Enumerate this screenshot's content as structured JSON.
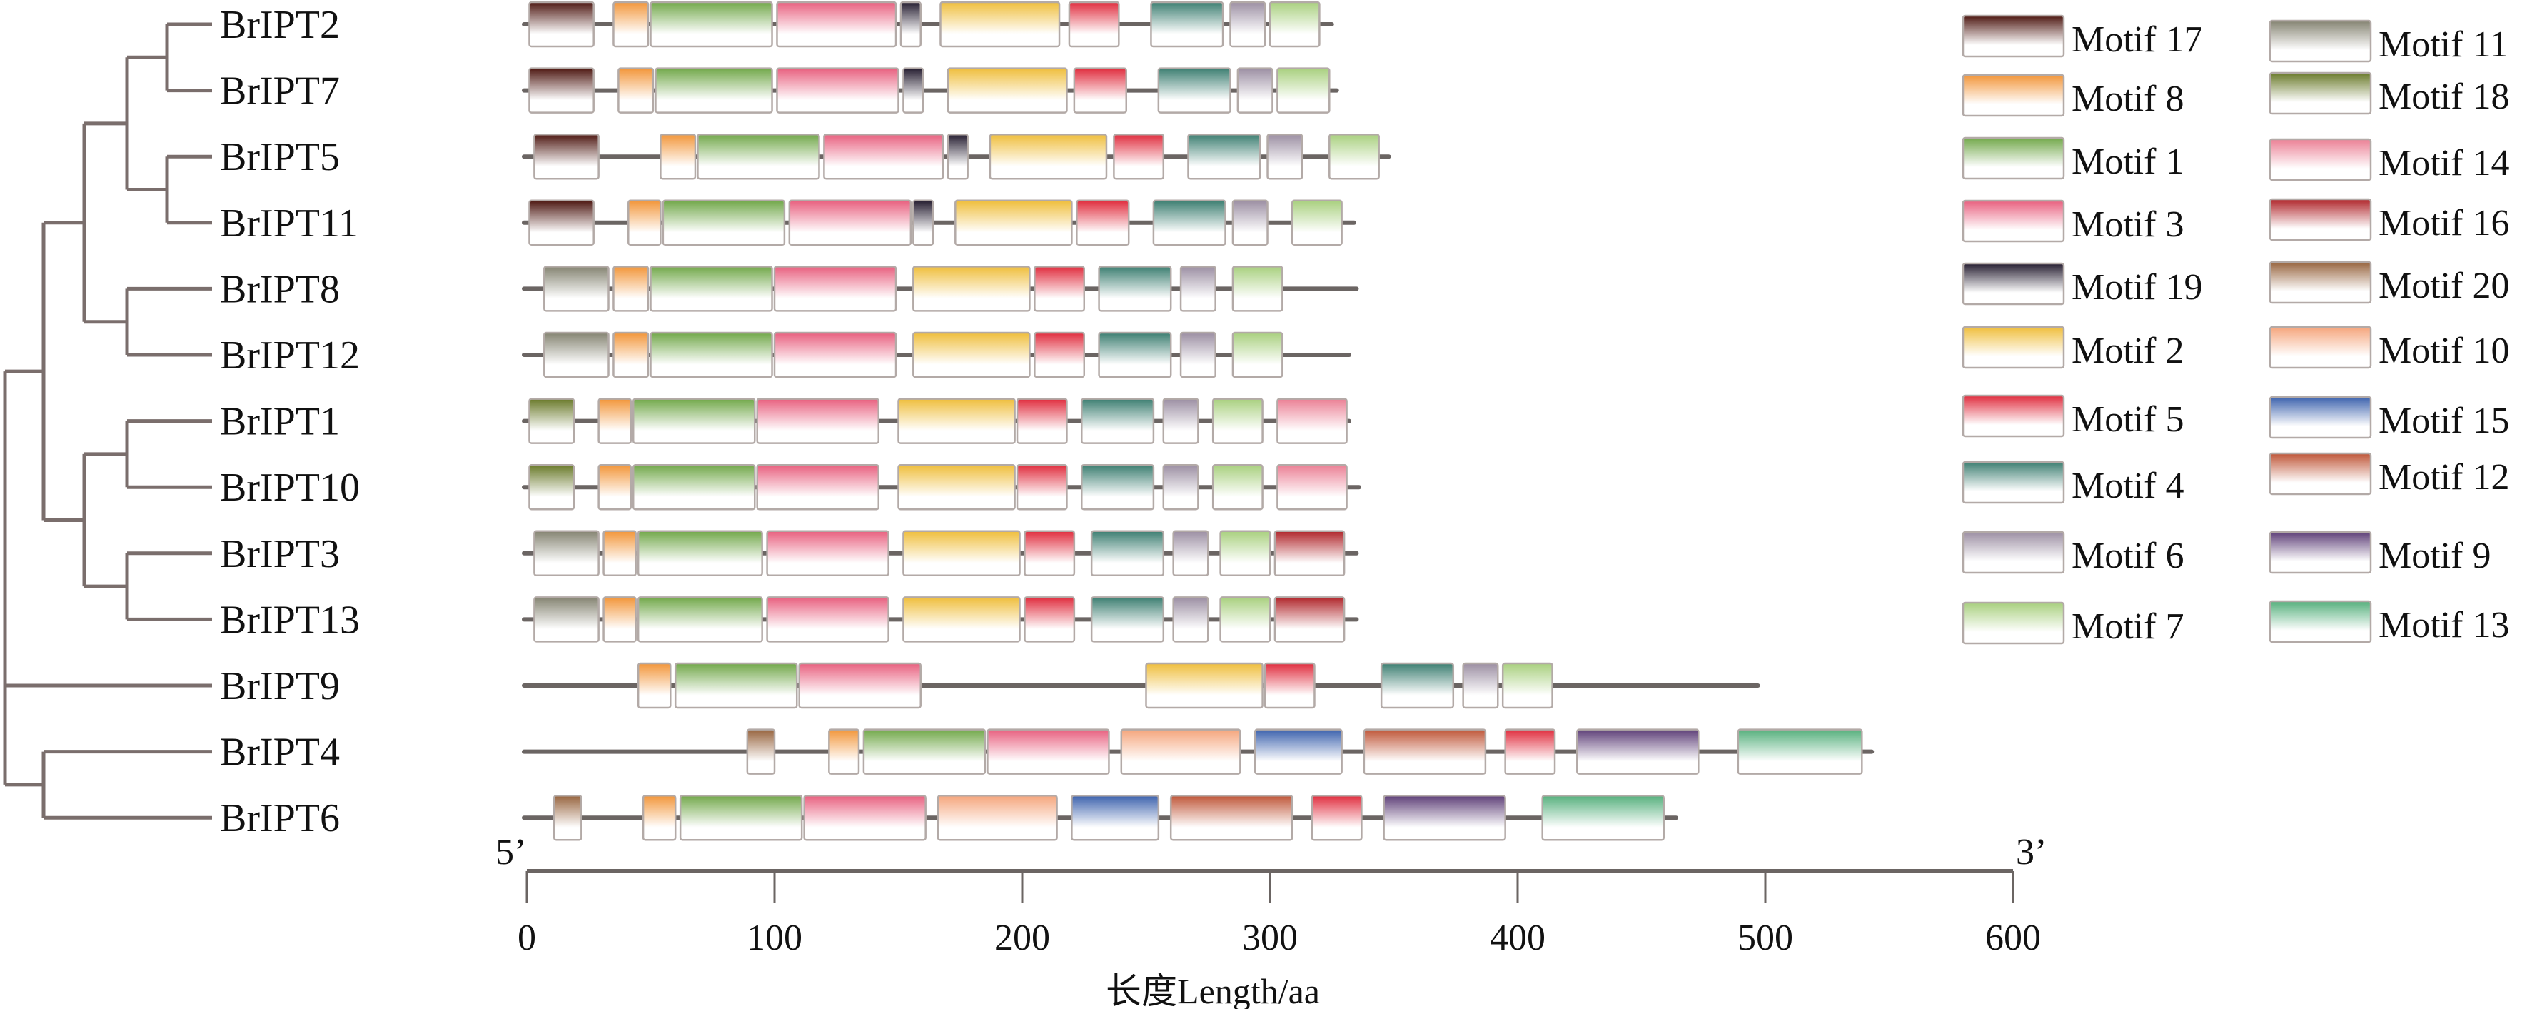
{
  "chart_data": {
    "type": "motif-diagram",
    "title": "",
    "xlabel": "长度Length/aa",
    "xlim": [
      0,
      600
    ],
    "x_ticks": [
      0,
      100,
      200,
      300,
      400,
      500,
      600
    ],
    "x_tick_labels": [
      "0",
      "100",
      "200",
      "300",
      "400",
      "500",
      "600"
    ],
    "axis_end_labels": {
      "start": "5’",
      "end": "3’"
    },
    "legend_placement": "top-right",
    "motif_colors": {
      "1": "#72a84a",
      "2": "#efbe3c",
      "3": "#e8607f",
      "4": "#3d7f72",
      "5": "#e02d3e",
      "6": "#9c8fa3",
      "7": "#a9d07f",
      "8": "#f2963a",
      "9": "#5e3f78",
      "10": "#f5a57c",
      "11": "#858472",
      "12": "#bf5638",
      "13": "#56b07d",
      "14": "#eb8095",
      "15": "#3c62ad",
      "16": "#b0262b",
      "17": "#4e1812",
      "18": "#6a7a2a",
      "19": "#251d30",
      "20": "#97643e"
    },
    "legend": [
      {
        "motif": "17",
        "label": "Motif 17"
      },
      {
        "motif": "8",
        "label": "Motif 8"
      },
      {
        "motif": "1",
        "label": "Motif 1"
      },
      {
        "motif": "3",
        "label": "Motif 3"
      },
      {
        "motif": "19",
        "label": "Motif 19"
      },
      {
        "motif": "2",
        "label": "Motif 2"
      },
      {
        "motif": "5",
        "label": "Motif 5"
      },
      {
        "motif": "4",
        "label": "Motif 4"
      },
      {
        "motif": "6",
        "label": "Motif 6"
      },
      {
        "motif": "7",
        "label": "Motif 7"
      },
      {
        "motif": "11",
        "label": "Motif 11"
      },
      {
        "motif": "18",
        "label": "Motif 18"
      },
      {
        "motif": "14",
        "label": "Motif 14"
      },
      {
        "motif": "16",
        "label": "Motif 16"
      },
      {
        "motif": "20",
        "label": "Motif 20"
      },
      {
        "motif": "10",
        "label": "Motif 10"
      },
      {
        "motif": "15",
        "label": "Motif 15"
      },
      {
        "motif": "12",
        "label": "Motif 12"
      },
      {
        "motif": "9",
        "label": "Motif 9"
      },
      {
        "motif": "13",
        "label": "Motif 13"
      }
    ],
    "tree": {
      "children": [
        {
          "children": [
            {
              "children": [
                {
                  "children": [
                    {
                      "children": [
                        {
                          "leaf": "BrIPT2"
                        },
                        {
                          "leaf": "BrIPT7"
                        }
                      ]
                    },
                    {
                      "children": [
                        {
                          "leaf": "BrIPT5"
                        },
                        {
                          "leaf": "BrIPT11"
                        }
                      ]
                    }
                  ]
                },
                {
                  "children": [
                    {
                      "leaf": "BrIPT8"
                    },
                    {
                      "leaf": "BrIPT12"
                    }
                  ]
                }
              ]
            },
            {
              "children": [
                {
                  "children": [
                    {
                      "leaf": "BrIPT1"
                    },
                    {
                      "leaf": "BrIPT10"
                    }
                  ]
                },
                {
                  "children": [
                    {
                      "leaf": "BrIPT3"
                    },
                    {
                      "leaf": "BrIPT13"
                    }
                  ]
                }
              ]
            }
          ]
        },
        {
          "leaf": "BrIPT9"
        },
        {
          "children": [
            {
              "leaf": "BrIPT4"
            },
            {
              "leaf": "BrIPT6"
            }
          ]
        }
      ]
    },
    "genes": [
      {
        "name": "BrIPT2",
        "length": 325,
        "motifs": [
          {
            "motif": "17",
            "start": 1,
            "end": 27
          },
          {
            "motif": "8",
            "start": 35,
            "end": 49
          },
          {
            "motif": "1",
            "start": 50,
            "end": 99
          },
          {
            "motif": "3",
            "start": 101,
            "end": 149
          },
          {
            "motif": "19",
            "start": 151,
            "end": 159
          },
          {
            "motif": "2",
            "start": 167,
            "end": 215
          },
          {
            "motif": "5",
            "start": 219,
            "end": 239
          },
          {
            "motif": "4",
            "start": 252,
            "end": 281
          },
          {
            "motif": "6",
            "start": 284,
            "end": 298
          },
          {
            "motif": "7",
            "start": 300,
            "end": 320
          }
        ]
      },
      {
        "name": "BrIPT7",
        "length": 327,
        "motifs": [
          {
            "motif": "17",
            "start": 1,
            "end": 27
          },
          {
            "motif": "8",
            "start": 37,
            "end": 51
          },
          {
            "motif": "1",
            "start": 52,
            "end": 99
          },
          {
            "motif": "3",
            "start": 101,
            "end": 150
          },
          {
            "motif": "19",
            "start": 152,
            "end": 160
          },
          {
            "motif": "2",
            "start": 170,
            "end": 218
          },
          {
            "motif": "5",
            "start": 221,
            "end": 242
          },
          {
            "motif": "4",
            "start": 255,
            "end": 284
          },
          {
            "motif": "6",
            "start": 287,
            "end": 301
          },
          {
            "motif": "7",
            "start": 303,
            "end": 324
          }
        ]
      },
      {
        "name": "BrIPT5",
        "length": 348,
        "motifs": [
          {
            "motif": "17",
            "start": 3,
            "end": 29
          },
          {
            "motif": "8",
            "start": 54,
            "end": 68
          },
          {
            "motif": "1",
            "start": 69,
            "end": 118
          },
          {
            "motif": "3",
            "start": 120,
            "end": 168
          },
          {
            "motif": "19",
            "start": 170,
            "end": 178
          },
          {
            "motif": "2",
            "start": 187,
            "end": 234
          },
          {
            "motif": "5",
            "start": 237,
            "end": 257
          },
          {
            "motif": "4",
            "start": 267,
            "end": 296
          },
          {
            "motif": "6",
            "start": 299,
            "end": 313
          },
          {
            "motif": "7",
            "start": 324,
            "end": 344
          }
        ]
      },
      {
        "name": "BrIPT11",
        "length": 334,
        "motifs": [
          {
            "motif": "17",
            "start": 1,
            "end": 27
          },
          {
            "motif": "8",
            "start": 41,
            "end": 54
          },
          {
            "motif": "1",
            "start": 55,
            "end": 104
          },
          {
            "motif": "3",
            "start": 106,
            "end": 155
          },
          {
            "motif": "19",
            "start": 156,
            "end": 164
          },
          {
            "motif": "2",
            "start": 173,
            "end": 220
          },
          {
            "motif": "5",
            "start": 222,
            "end": 243
          },
          {
            "motif": "4",
            "start": 253,
            "end": 282
          },
          {
            "motif": "6",
            "start": 285,
            "end": 299
          },
          {
            "motif": "7",
            "start": 309,
            "end": 329
          }
        ]
      },
      {
        "name": "BrIPT8",
        "length": 335,
        "motifs": [
          {
            "motif": "11",
            "start": 7,
            "end": 33
          },
          {
            "motif": "8",
            "start": 35,
            "end": 49
          },
          {
            "motif": "1",
            "start": 50,
            "end": 99
          },
          {
            "motif": "3",
            "start": 100,
            "end": 149
          },
          {
            "motif": "2",
            "start": 156,
            "end": 203
          },
          {
            "motif": "5",
            "start": 205,
            "end": 225
          },
          {
            "motif": "4",
            "start": 231,
            "end": 260
          },
          {
            "motif": "6",
            "start": 264,
            "end": 278
          },
          {
            "motif": "7",
            "start": 285,
            "end": 305
          }
        ]
      },
      {
        "name": "BrIPT12",
        "length": 332,
        "motifs": [
          {
            "motif": "11",
            "start": 7,
            "end": 33
          },
          {
            "motif": "8",
            "start": 35,
            "end": 49
          },
          {
            "motif": "1",
            "start": 50,
            "end": 99
          },
          {
            "motif": "3",
            "start": 100,
            "end": 149
          },
          {
            "motif": "2",
            "start": 156,
            "end": 203
          },
          {
            "motif": "5",
            "start": 205,
            "end": 225
          },
          {
            "motif": "4",
            "start": 231,
            "end": 260
          },
          {
            "motif": "6",
            "start": 264,
            "end": 278
          },
          {
            "motif": "7",
            "start": 285,
            "end": 305
          }
        ]
      },
      {
        "name": "BrIPT1",
        "length": 332,
        "motifs": [
          {
            "motif": "18",
            "start": 1,
            "end": 19
          },
          {
            "motif": "8",
            "start": 29,
            "end": 42
          },
          {
            "motif": "1",
            "start": 43,
            "end": 92
          },
          {
            "motif": "3",
            "start": 93,
            "end": 142
          },
          {
            "motif": "2",
            "start": 150,
            "end": 197
          },
          {
            "motif": "5",
            "start": 198,
            "end": 218
          },
          {
            "motif": "4",
            "start": 224,
            "end": 253
          },
          {
            "motif": "6",
            "start": 257,
            "end": 271
          },
          {
            "motif": "7",
            "start": 277,
            "end": 297
          },
          {
            "motif": "14",
            "start": 303,
            "end": 331
          }
        ]
      },
      {
        "name": "BrIPT10",
        "length": 336,
        "motifs": [
          {
            "motif": "18",
            "start": 1,
            "end": 19
          },
          {
            "motif": "8",
            "start": 29,
            "end": 42
          },
          {
            "motif": "1",
            "start": 43,
            "end": 92
          },
          {
            "motif": "3",
            "start": 93,
            "end": 142
          },
          {
            "motif": "2",
            "start": 150,
            "end": 197
          },
          {
            "motif": "5",
            "start": 198,
            "end": 218
          },
          {
            "motif": "4",
            "start": 224,
            "end": 253
          },
          {
            "motif": "6",
            "start": 257,
            "end": 271
          },
          {
            "motif": "7",
            "start": 277,
            "end": 297
          },
          {
            "motif": "14",
            "start": 303,
            "end": 331
          }
        ]
      },
      {
        "name": "BrIPT3",
        "length": 335,
        "motifs": [
          {
            "motif": "11",
            "start": 3,
            "end": 29
          },
          {
            "motif": "8",
            "start": 31,
            "end": 44
          },
          {
            "motif": "1",
            "start": 45,
            "end": 95
          },
          {
            "motif": "3",
            "start": 97,
            "end": 146
          },
          {
            "motif": "2",
            "start": 152,
            "end": 199
          },
          {
            "motif": "5",
            "start": 201,
            "end": 221
          },
          {
            "motif": "4",
            "start": 228,
            "end": 257
          },
          {
            "motif": "6",
            "start": 261,
            "end": 275
          },
          {
            "motif": "7",
            "start": 280,
            "end": 300
          },
          {
            "motif": "16",
            "start": 302,
            "end": 330
          }
        ]
      },
      {
        "name": "BrIPT13",
        "length": 335,
        "motifs": [
          {
            "motif": "11",
            "start": 3,
            "end": 29
          },
          {
            "motif": "8",
            "start": 31,
            "end": 44
          },
          {
            "motif": "1",
            "start": 45,
            "end": 95
          },
          {
            "motif": "3",
            "start": 97,
            "end": 146
          },
          {
            "motif": "2",
            "start": 152,
            "end": 199
          },
          {
            "motif": "5",
            "start": 201,
            "end": 221
          },
          {
            "motif": "4",
            "start": 228,
            "end": 257
          },
          {
            "motif": "6",
            "start": 261,
            "end": 275
          },
          {
            "motif": "7",
            "start": 280,
            "end": 300
          },
          {
            "motif": "16",
            "start": 302,
            "end": 330
          }
        ]
      },
      {
        "name": "BrIPT9",
        "length": 497,
        "motifs": [
          {
            "motif": "8",
            "start": 45,
            "end": 58
          },
          {
            "motif": "1",
            "start": 60,
            "end": 109
          },
          {
            "motif": "3",
            "start": 110,
            "end": 159
          },
          {
            "motif": "2",
            "start": 250,
            "end": 297
          },
          {
            "motif": "5",
            "start": 298,
            "end": 318
          },
          {
            "motif": "4",
            "start": 345,
            "end": 374
          },
          {
            "motif": "6",
            "start": 378,
            "end": 392
          },
          {
            "motif": "7",
            "start": 394,
            "end": 414
          }
        ]
      },
      {
        "name": "BrIPT4",
        "length": 543,
        "motifs": [
          {
            "motif": "20",
            "start": 89,
            "end": 100
          },
          {
            "motif": "8",
            "start": 122,
            "end": 134
          },
          {
            "motif": "1",
            "start": 136,
            "end": 185
          },
          {
            "motif": "3",
            "start": 186,
            "end": 235
          },
          {
            "motif": "10",
            "start": 240,
            "end": 288
          },
          {
            "motif": "15",
            "start": 294,
            "end": 329
          },
          {
            "motif": "12",
            "start": 338,
            "end": 387
          },
          {
            "motif": "5",
            "start": 395,
            "end": 415
          },
          {
            "motif": "9",
            "start": 424,
            "end": 473
          },
          {
            "motif": "13",
            "start": 489,
            "end": 539
          }
        ]
      },
      {
        "name": "BrIPT6",
        "length": 464,
        "motifs": [
          {
            "motif": "20",
            "start": 11,
            "end": 22
          },
          {
            "motif": "8",
            "start": 47,
            "end": 60
          },
          {
            "motif": "1",
            "start": 62,
            "end": 111
          },
          {
            "motif": "3",
            "start": 112,
            "end": 161
          },
          {
            "motif": "10",
            "start": 166,
            "end": 214
          },
          {
            "motif": "15",
            "start": 220,
            "end": 255
          },
          {
            "motif": "12",
            "start": 260,
            "end": 309
          },
          {
            "motif": "5",
            "start": 317,
            "end": 337
          },
          {
            "motif": "9",
            "start": 346,
            "end": 395
          },
          {
            "motif": "13",
            "start": 410,
            "end": 459
          }
        ]
      }
    ]
  }
}
